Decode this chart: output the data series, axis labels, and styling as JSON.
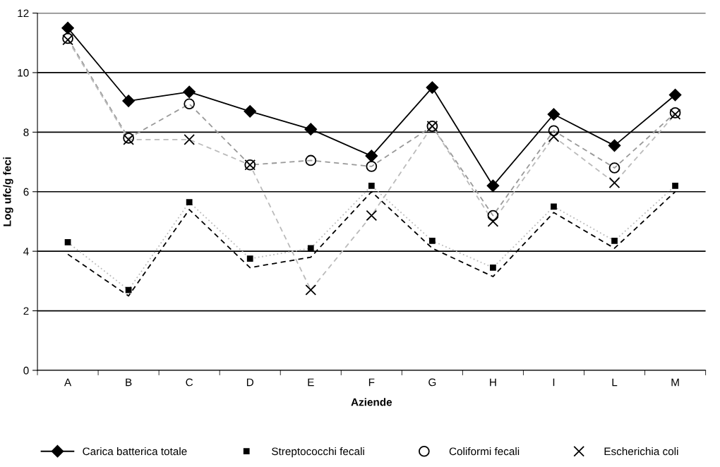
{
  "chart_data": {
    "type": "line",
    "xlabel": "Aziende",
    "ylabel": "Log ufc/g feci",
    "categories": [
      "A",
      "B",
      "C",
      "D",
      "E",
      "F",
      "G",
      "H",
      "I",
      "L",
      "M"
    ],
    "ylim": [
      0,
      12
    ],
    "yticks": [
      0,
      2,
      4,
      6,
      8,
      10,
      12
    ],
    "grid": "y",
    "legend": "bottom",
    "series": [
      {
        "color": "#bbbbbb",
        "line_style": "dotted",
        "marker": "none",
        "values": [
          4.3,
          2.7,
          5.65,
          3.75,
          4.1,
          6.2,
          4.35,
          3.45,
          5.5,
          4.35,
          6.2
        ]
      },
      {
        "color": "#999999",
        "line_style": "dashed",
        "marker": "none",
        "values": [
          11.15,
          7.8,
          8.95,
          6.9,
          7.05,
          6.85,
          8.2,
          5.2,
          8.05,
          6.8,
          8.65
        ]
      },
      {
        "color": "#bbbbbb",
        "line_style": "dashed",
        "marker": "none",
        "values": [
          11.1,
          7.75,
          7.75,
          6.9,
          2.7,
          5.2,
          8.2,
          5.0,
          7.85,
          6.3,
          8.6
        ]
      },
      {
        "color": "#000000",
        "line_style": "dashed",
        "marker": "none",
        "values": [
          3.9,
          2.5,
          5.4,
          3.45,
          3.8,
          6.0,
          4.1,
          3.15,
          5.3,
          4.1,
          6.0
        ]
      },
      {
        "name": "Carica batterica totale",
        "color": "#000000",
        "line_style": "solid",
        "marker": "diamond",
        "values": [
          11.5,
          9.05,
          9.35,
          8.7,
          8.1,
          7.2,
          9.5,
          6.2,
          8.6,
          7.55,
          9.25
        ]
      },
      {
        "type": "scatter",
        "name": "Streptococchi fecali",
        "color": "#000000",
        "marker": "square",
        "values": [
          4.3,
          2.7,
          5.65,
          3.75,
          4.1,
          6.2,
          4.35,
          3.45,
          5.5,
          4.35,
          6.2
        ]
      },
      {
        "type": "scatter",
        "name": "Coliformi fecali",
        "color": "#000000",
        "marker": "circle",
        "values": [
          11.15,
          7.8,
          8.95,
          6.9,
          7.05,
          6.85,
          8.2,
          5.2,
          8.05,
          6.8,
          8.65
        ]
      },
      {
        "type": "scatter",
        "name": "Escherichia coli",
        "color": "#000000",
        "marker": "cross",
        "values": [
          11.1,
          7.75,
          7.75,
          6.9,
          2.7,
          5.2,
          8.2,
          5.0,
          7.85,
          6.3,
          8.6
        ]
      }
    ]
  }
}
